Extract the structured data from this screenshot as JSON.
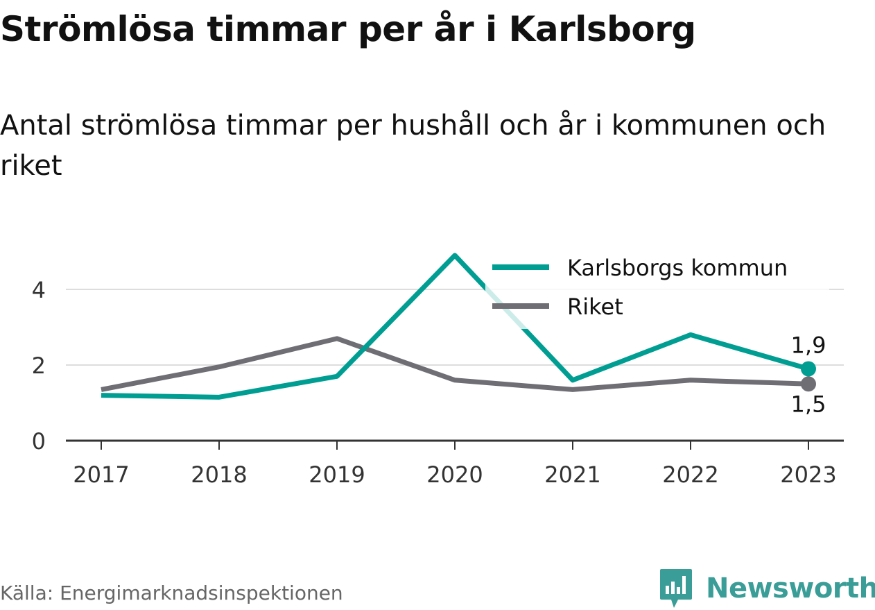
{
  "title": "Strömlösa timmar per år i Karlsborg",
  "subtitle": "Antal strömlösa timmar per hushåll och år i kommunen och riket",
  "source": "Källa: Energimarknadsinspektionen",
  "brand": {
    "name": "Newsworthy",
    "icon": "newsworthy-logo-icon",
    "color": "#3a9d97"
  },
  "chart_data": {
    "type": "line",
    "title": "Strömlösa timmar per år i Karlsborg",
    "subtitle": "Antal strömlösa timmar per hushåll och år i kommunen och riket",
    "x": [
      "2017",
      "2018",
      "2019",
      "2020",
      "2021",
      "2022",
      "2023"
    ],
    "yticks": [
      0,
      2,
      4
    ],
    "ylim": [
      0,
      4.9
    ],
    "grid": true,
    "legend_position": "top-right",
    "series": [
      {
        "name": "Karlsborgs kommun",
        "color": "#009e92",
        "values": [
          1.2,
          1.15,
          1.7,
          4.9,
          1.6,
          2.8,
          1.9
        ],
        "end_label": "1,9"
      },
      {
        "name": "Riket",
        "color": "#6f6e74",
        "values": [
          1.35,
          1.95,
          2.7,
          1.6,
          1.35,
          1.6,
          1.5
        ],
        "end_label": "1,5"
      }
    ]
  }
}
